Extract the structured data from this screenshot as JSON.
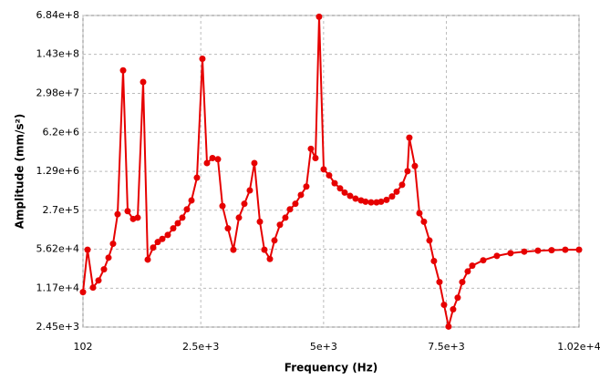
{
  "chart_data": {
    "type": "line",
    "x_label": "Frequency (Hz)",
    "y_label": "Amplitude (mm/s²)",
    "x": [
      102,
      195,
      306,
      418,
      529,
      622,
      714,
      807,
      919,
      1011,
      1123,
      1216,
      1327,
      1420,
      1531,
      1624,
      1717,
      1828,
      1939,
      2032,
      2125,
      2218,
      2311,
      2422,
      2533,
      2626,
      2738,
      2849,
      2942,
      3053,
      3164,
      3276,
      3387,
      3498,
      3591,
      3703,
      3795,
      3907,
      4000,
      4111,
      4222,
      4315,
      4426,
      4538,
      4649,
      4742,
      4835,
      4909,
      5002,
      5113,
      5225,
      5336,
      5429,
      5540,
      5651,
      5763,
      5855,
      5967,
      6078,
      6171,
      6282,
      6394,
      6487,
      6598,
      6709,
      6746,
      6858,
      6951,
      7043,
      7155,
      7247,
      7359,
      7452,
      7544,
      7637,
      7730,
      7823,
      7934,
      8027,
      8250,
      8528,
      8806,
      9085,
      9363,
      9642,
      9920,
      10200
    ],
    "values": [
      10000,
      55000,
      12000,
      16000,
      25000,
      40000,
      70000,
      230000,
      75000000,
      260000,
      190000,
      200000,
      47000000,
      37000,
      60000,
      75000,
      85000,
      100000,
      130000,
      160000,
      200000,
      280000,
      400000,
      1000000,
      120000000,
      1800000,
      2200000,
      2100000,
      320000,
      130000,
      55000,
      200000,
      350000,
      600000,
      1800000,
      170000,
      55000,
      38000,
      80000,
      150000,
      200000,
      280000,
      350000,
      500000,
      700000,
      3200000,
      2200000,
      650000000,
      1400000,
      1100000,
      800000,
      650000,
      550000,
      480000,
      430000,
      400000,
      380000,
      370000,
      370000,
      380000,
      410000,
      470000,
      570000,
      750000,
      1300000,
      5000000,
      1600000,
      240000,
      170000,
      80000,
      35000,
      15000,
      6000,
      2500,
      5000,
      8000,
      15000,
      23000,
      29000,
      36000,
      43000,
      48000,
      51000,
      53000,
      54000,
      55000,
      55000
    ],
    "color": "#e60000",
    "xlim": [
      102,
      10200
    ],
    "xticks": [
      102,
      {
        "value": 2500,
        "label": "2.5e+3"
      },
      {
        "value": 5000,
        "label": "5e+3"
      },
      {
        "value": 7500,
        "label": "7.5e+3"
      },
      {
        "value": 10200,
        "label": "1.02e+4"
      }
    ],
    "ylim": [
      2450,
      684000000
    ],
    "yscale": "log",
    "yticks": [
      {
        "value": 2450,
        "label": "2.45e+3"
      },
      {
        "value": 11700,
        "label": "1.17e+4"
      },
      {
        "value": 56200,
        "label": "5.62e+4"
      },
      {
        "value": 270000,
        "label": "2.7e+5"
      },
      {
        "value": 1290000,
        "label": "1.29e+6"
      },
      {
        "value": 6200000,
        "label": "6.2e+6"
      },
      {
        "value": 29800000,
        "label": "2.98e+7"
      },
      {
        "value": 143000000,
        "label": "1.43e+8"
      },
      {
        "value": 684000000,
        "label": "6.84e+8"
      }
    ],
    "grid": true
  }
}
